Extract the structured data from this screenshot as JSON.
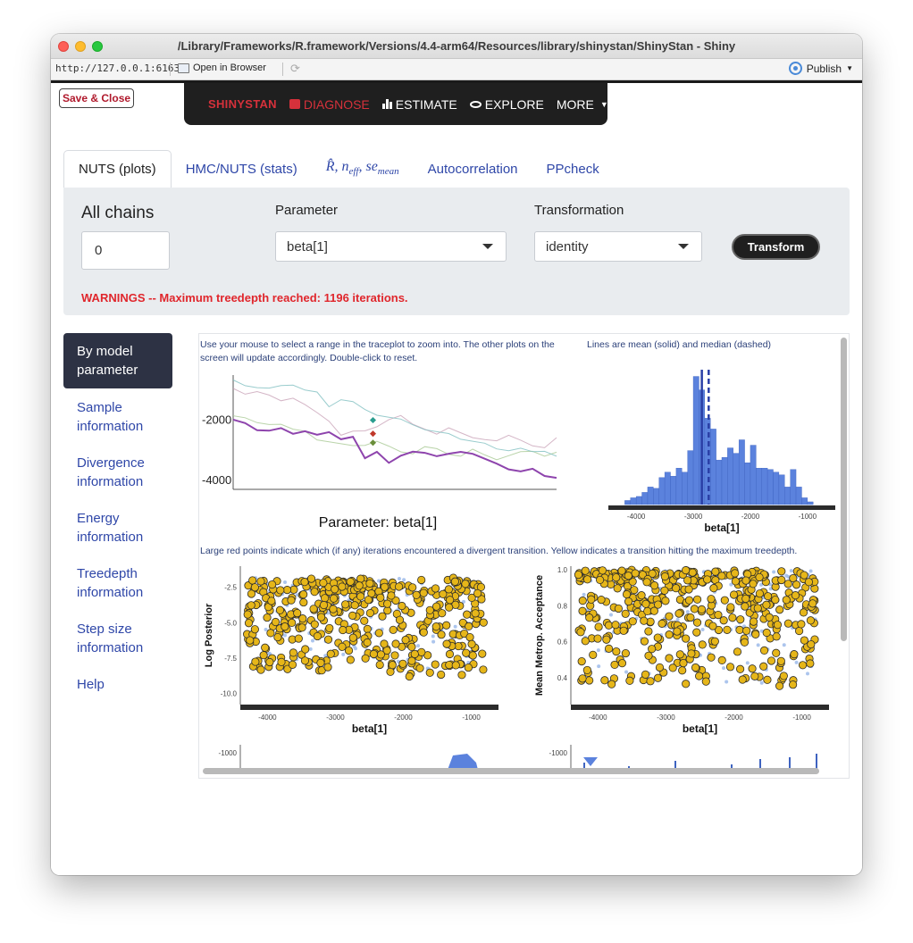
{
  "window": {
    "title": "/Library/Frameworks/R.framework/Versions/4.4-arm64/Resources/library/shinystan/ShinyStan - Shiny",
    "url": "http://127.0.0.1:6163",
    "open_in_browser": "Open in Browser",
    "publish": "Publish"
  },
  "header": {
    "save_close": "Save & Close",
    "brand": "SHINYSTAN",
    "nav": [
      "DIAGNOSE",
      "ESTIMATE",
      "EXPLORE",
      "MORE"
    ]
  },
  "tabs": {
    "nuts_plots": "NUTS (plots)",
    "hmc_stats": "HMC/NUTS (stats)",
    "rhat": "R̂, n",
    "rhat_sub1": "eff",
    "rhat_mid": ", se",
    "rhat_sub2": "mean",
    "autocorrelation": "Autocorrelation",
    "ppcheck": "PPcheck"
  },
  "controls": {
    "chains_label": "All chains",
    "chains_value": "0",
    "parameter_label": "Parameter",
    "parameter_value": "beta[1]",
    "transformation_label": "Transformation",
    "transformation_value": "identity",
    "transform_button": "Transform",
    "warning": "WARNINGS -- Maximum treedepth reached: 1196 iterations."
  },
  "sidebar": {
    "items": [
      "By model parameter",
      "Sample information",
      "Divergence information",
      "Energy information",
      "Treedepth information",
      "Step size information",
      "Help"
    ]
  },
  "notes": {
    "trace": "Use your mouse to select a range in the traceplot to zoom into. The other plots on the screen will update accordingly. Double-click to reset.",
    "hist": "Lines are mean (solid) and median (dashed)",
    "scatter": "Large red points indicate which (if any) iterations encountered a divergent transition. Yellow indicates a transition hitting the maximum treedepth."
  },
  "chart_data": [
    {
      "type": "line",
      "title": "Parameter: beta[1]",
      "yticks": [
        "-2000",
        "-4000"
      ],
      "series": [
        {
          "color": "#8e44ad",
          "values": [
            -2000,
            -2150,
            -2300,
            -2350,
            -2300,
            -2400,
            -2350,
            -2500,
            -2450,
            -2600,
            -2550,
            -3300,
            -3000,
            -3400,
            -3200,
            -3100,
            -3050,
            -3200,
            -3150,
            -3000,
            -3100,
            -3300,
            -3500,
            -3600,
            -3700,
            -3650,
            -3800,
            -3900
          ]
        },
        {
          "color": "#7fbfc0",
          "values": [
            -700,
            -800,
            -900,
            -950,
            -900,
            -800,
            -1000,
            -1100,
            -1500,
            -1300,
            -1400,
            -1700,
            -1800,
            -1900,
            -2000,
            -2100,
            -2300,
            -2400,
            -2500,
            -2600,
            -2700,
            -2800,
            -2900,
            -3000,
            -2950,
            -3100,
            -3000,
            -3200
          ]
        },
        {
          "color": "#c9a3b8",
          "values": [
            -1000,
            -1100,
            -1050,
            -1200,
            -1300,
            -1250,
            -1500,
            -1800,
            -2000,
            -2500,
            -2400,
            -2300,
            -2200,
            -2000,
            -1900,
            -2100,
            -2300,
            -2500,
            -2200,
            -2400,
            -2600,
            -2700,
            -2650,
            -2500,
            -2700,
            -2800,
            -2900,
            -2600
          ]
        },
        {
          "color": "#a9c995",
          "values": [
            -1800,
            -1900,
            -2100,
            -2200,
            -2100,
            -2300,
            -2400,
            -2600,
            -2700,
            -2800,
            -2900,
            -2800,
            -2700,
            -2900,
            -3000,
            -3100,
            -2900,
            -3000,
            -3100,
            -3200,
            -3000,
            -3100,
            -3300,
            -3200,
            -3100,
            -3000,
            -3200,
            -3100
          ]
        }
      ]
    },
    {
      "type": "bar",
      "xlabel": "beta[1]",
      "xticks": [
        "-4000",
        "-3000",
        "-2000",
        "-1000"
      ],
      "x": [
        -4150,
        -4050,
        -3950,
        -3850,
        -3750,
        -3650,
        -3550,
        -3450,
        -3350,
        -3250,
        -3150,
        -3050,
        -2950,
        -2850,
        -2750,
        -2650,
        -2550,
        -2450,
        -2350,
        -2250,
        -2150,
        -2050,
        -1950,
        -1850,
        -1750,
        -1650,
        -1550,
        -1450,
        -1350,
        -1250,
        -1150,
        -1050,
        -950
      ],
      "values": [
        3,
        5,
        6,
        9,
        13,
        12,
        20,
        24,
        21,
        27,
        24,
        40,
        95,
        85,
        64,
        56,
        33,
        35,
        42,
        38,
        48,
        31,
        44,
        27,
        27,
        26,
        24,
        22,
        13,
        26,
        13,
        5,
        2
      ]
    },
    {
      "type": "scatter",
      "xlabel": "beta[1]",
      "ylabel": "Log Posterior",
      "xticks": [
        "-4000",
        "-3000",
        "-2000",
        "-1000"
      ],
      "yticks": [
        "-2.5",
        "-5.0",
        "-7.5",
        "-10.0"
      ],
      "xlim": [
        -4400,
        -600
      ],
      "ylim": [
        -10.8,
        -1.0
      ]
    },
    {
      "type": "scatter",
      "xlabel": "beta[1]",
      "ylabel": "Mean Metrop. Acceptance",
      "xticks": [
        "-4000",
        "-3000",
        "-2000",
        "-1000"
      ],
      "yticks": [
        "1.0",
        "0.8",
        "0.6",
        "0.4"
      ],
      "xlim": [
        -4400,
        -600
      ],
      "ylim": [
        0.25,
        1.02
      ]
    },
    {
      "type": "line",
      "yticks": [
        "-1000",
        "-1000"
      ]
    }
  ]
}
